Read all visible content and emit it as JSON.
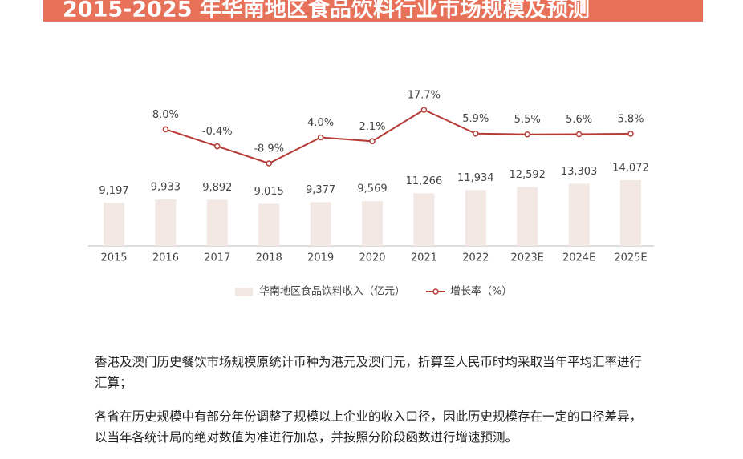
{
  "chart_data": {
    "type": "bar-line",
    "title": "2015-2025 年华南地区食品饮料行业市场规模及预测",
    "categories": [
      "2015",
      "2016",
      "2017",
      "2018",
      "2019",
      "2020",
      "2021",
      "2022",
      "2023E",
      "2024E",
      "2025E"
    ],
    "series": [
      {
        "name": "华南地区食品饮料收入（亿元）",
        "type": "bar",
        "color": "#f3e7e4",
        "values": [
          9197,
          9933,
          9892,
          9015,
          9377,
          9569,
          11266,
          11934,
          12592,
          13303,
          14072
        ],
        "value_labels": [
          "9,197",
          "9,933",
          "9,892",
          "9,015",
          "9,377",
          "9,569",
          "11,266",
          "11,934",
          "12,592",
          "13,303",
          "14,072"
        ]
      },
      {
        "name": "增长率（%）",
        "type": "line",
        "axis": "y2",
        "color": "#b63b36",
        "values": [
          null,
          8.0,
          -0.4,
          -8.9,
          4.0,
          2.1,
          17.7,
          5.9,
          5.5,
          5.6,
          5.8
        ],
        "value_labels": [
          null,
          "8.0%",
          "-0.4%",
          "-8.9%",
          "4.0%",
          "2.1%",
          "17.7%",
          "5.9%",
          "5.5%",
          "5.6%",
          "5.8%"
        ]
      }
    ],
    "legend": "bottom"
  },
  "notes": [
    "香港及澳门历史餐饮市场规模原统计币种为港元及澳门元，折算至人民币时均采取当年平均汇率进行汇算；",
    "各省在历史规模中有部分年份调整了规模以上企业的收入口径，因此历史规模存在一定的口径差异，以当年各统计局的绝对数值为准进行加总，并按照分阶段函数进行增速预测。"
  ]
}
